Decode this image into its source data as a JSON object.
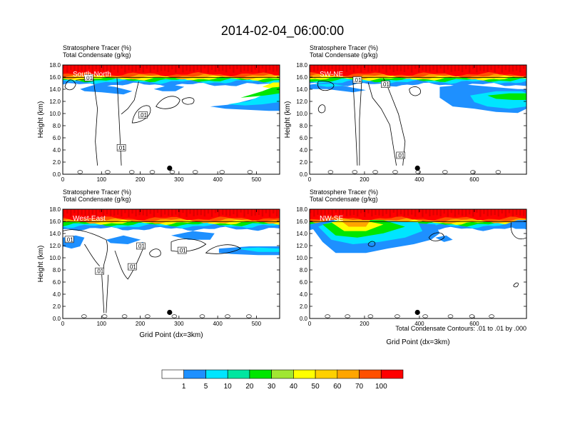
{
  "figure": {
    "title": "2014-02-04_06:00:00",
    "footnote": "Total Condensate Contours: .01 to .01 by .000"
  },
  "colors": {
    "shading": [
      "#ffffff",
      "#1e90ff",
      "#00e5ff",
      "#00e6a0",
      "#00e600",
      "#a0e632",
      "#ffff00",
      "#ffd000",
      "#ffa500",
      "#ff5000",
      "#ff0000"
    ],
    "contour": "#000000",
    "marker": "#000000"
  },
  "chart_data": [
    {
      "type": "contour-section",
      "panel_label": "South-North",
      "title_lines": [
        "Stratosphere Tracer   (%)",
        "Total Condensate   (g/kg)"
      ],
      "ylabel": "Height (km)",
      "xlabel": "",
      "xlim": [
        0,
        560
      ],
      "ylim": [
        0,
        18
      ],
      "xticks": [
        0,
        100,
        200,
        300,
        400,
        500
      ],
      "yticks": [
        "0.0",
        "2.0",
        "4.0",
        "6.0",
        "8.0",
        "10.0",
        "12.0",
        "14.0",
        "16.0",
        "18.0"
      ],
      "contour_labels": [
        ".01",
        ".01",
        ".01"
      ],
      "marker_x": 276,
      "marker_y": 1.0
    },
    {
      "type": "contour-section",
      "panel_label": "SW-NE",
      "title_lines": [
        "Stratosphere Tracer   (%)",
        "Total Condensate   (g/kg)"
      ],
      "ylabel": "Height (km)",
      "xlabel": "",
      "xlim": [
        0,
        790
      ],
      "ylim": [
        0,
        18
      ],
      "xticks": [
        0,
        200,
        400,
        600
      ],
      "yticks": [
        "0.0",
        "2.0",
        "4.0",
        "6.0",
        "8.0",
        "10.0",
        "12.0",
        "14.0",
        "16.0",
        "18.0"
      ],
      "contour_labels": [
        ".01",
        ".01",
        ".01"
      ],
      "marker_x": 393,
      "marker_y": 1.0
    },
    {
      "type": "contour-section",
      "panel_label": "West-East",
      "title_lines": [
        "Stratosphere Tracer   (%)",
        "Total Condensate   (g/kg)"
      ],
      "ylabel": "Height (km)",
      "xlabel": "Grid Point (dx=3km)",
      "xlim": [
        0,
        560
      ],
      "ylim": [
        0,
        18
      ],
      "xticks": [
        0,
        100,
        200,
        300,
        400,
        500
      ],
      "yticks": [
        "0.0",
        "2.0",
        "4.0",
        "6.0",
        "8.0",
        "10.0",
        "12.0",
        "14.0",
        "16.0",
        "18.0"
      ],
      "contour_labels": [
        ".01",
        ".01",
        ".01",
        ".01",
        ".01"
      ],
      "marker_x": 276,
      "marker_y": 1.0
    },
    {
      "type": "contour-section",
      "panel_label": "NW-SE",
      "title_lines": [
        "Stratosphere Tracer   (%)",
        "Total Condensate   (g/kg)"
      ],
      "ylabel": "",
      "xlabel": "Grid Point (dx=3km)",
      "xlim": [
        0,
        790
      ],
      "ylim": [
        0,
        18
      ],
      "xticks": [
        0,
        200,
        400,
        600
      ],
      "yticks": [
        "0.0",
        "2.0",
        "4.0",
        "6.0",
        "8.0",
        "10.0",
        "12.0",
        "14.0",
        "16.0",
        "18.0"
      ],
      "contour_labels": [],
      "marker_x": 393,
      "marker_y": 1.0
    }
  ],
  "colorbar": {
    "labels": [
      "1",
      "5",
      "10",
      "20",
      "30",
      "40",
      "50",
      "60",
      "70",
      "100"
    ]
  }
}
